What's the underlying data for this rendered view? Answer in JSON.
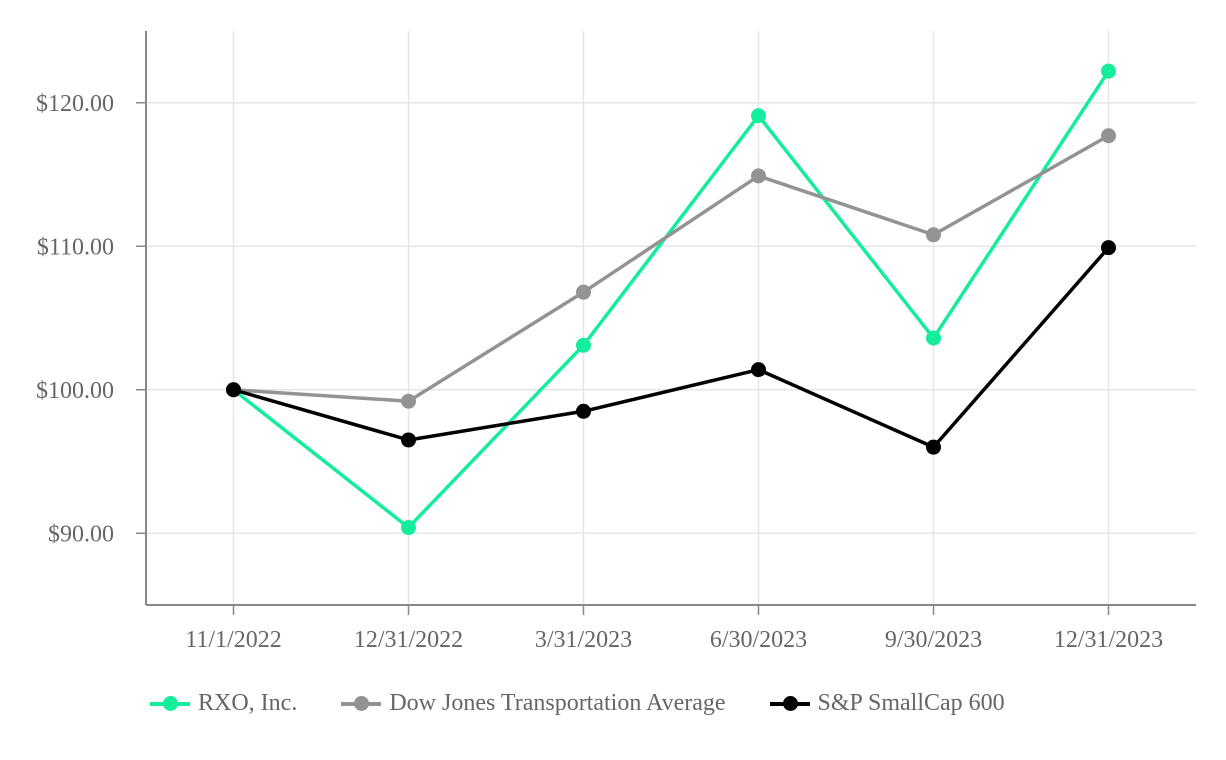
{
  "chart_data": {
    "type": "line",
    "title": "",
    "xlabel": "",
    "ylabel": "",
    "categories": [
      "11/1/2022",
      "12/31/2022",
      "3/31/2023",
      "6/30/2023",
      "9/30/2023",
      "12/31/2023"
    ],
    "yticks": [
      90,
      100,
      110,
      120
    ],
    "ytick_labels": [
      "$90.00",
      "$100.00",
      "$110.00",
      "$120.00"
    ],
    "ylim": [
      85,
      125
    ],
    "grid": true,
    "legend_position": "bottom",
    "series": [
      {
        "name": "RXO, Inc.",
        "color": "#14ee9c",
        "values": [
          100.0,
          90.4,
          103.1,
          119.1,
          103.6,
          122.2
        ]
      },
      {
        "name": "Dow Jones Transportation Average",
        "color": "#939393",
        "values": [
          100.0,
          99.2,
          106.8,
          114.9,
          110.8,
          117.7
        ]
      },
      {
        "name": "S&P SmallCap 600",
        "color": "#000000",
        "values": [
          100.0,
          96.5,
          98.5,
          101.4,
          96.0,
          109.9
        ]
      }
    ]
  }
}
